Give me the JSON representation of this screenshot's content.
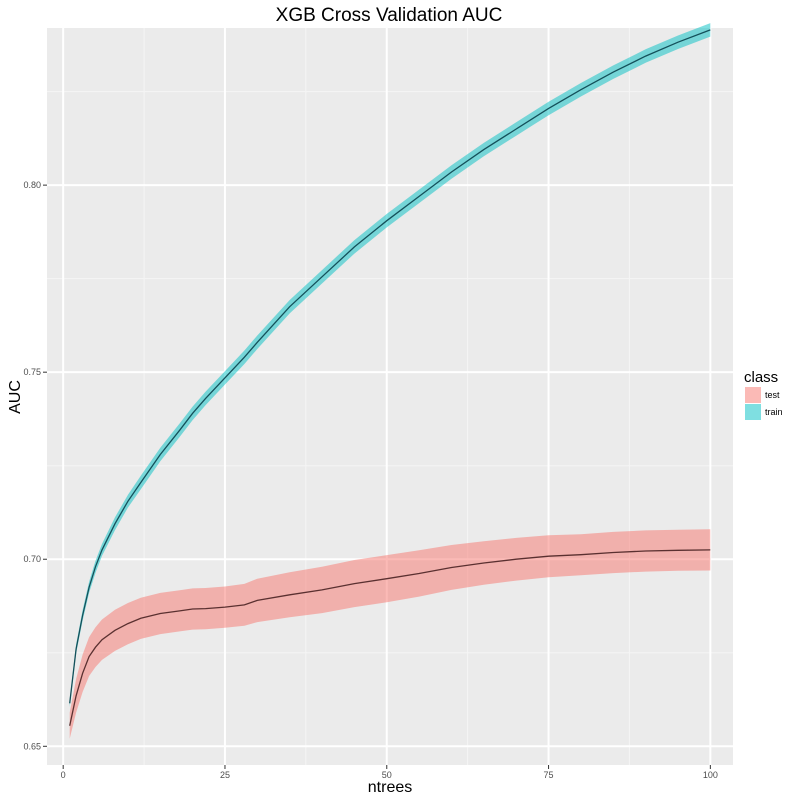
{
  "chart_data": {
    "type": "line",
    "title": "XGB Cross Validation AUC",
    "xlabel": "ntrees",
    "ylabel": "AUC",
    "xlim": [
      -2.5,
      103.5
    ],
    "ylim": [
      0.645,
      0.842
    ],
    "x_ticks": [
      0,
      25,
      50,
      75,
      100
    ],
    "x_tick_labels": [
      "0",
      "25",
      "50",
      "75",
      "100"
    ],
    "y_ticks": [
      0.65,
      0.7,
      0.75,
      0.8
    ],
    "y_tick_labels": [
      "0.65",
      "0.70",
      "0.75",
      "0.80"
    ],
    "grid": true,
    "legend": {
      "title": "class",
      "position": "right"
    },
    "series": [
      {
        "name": "test",
        "fill_color": "#F8766D",
        "line_color": "#5a3030",
        "x": [
          1,
          2,
          3,
          4,
          5,
          6,
          8,
          10,
          12,
          15,
          18,
          20,
          22,
          25,
          28,
          30,
          35,
          40,
          45,
          50,
          55,
          60,
          65,
          70,
          75,
          80,
          85,
          90,
          95,
          100
        ],
        "mean": [
          0.6555,
          0.6635,
          0.6695,
          0.674,
          0.6765,
          0.6785,
          0.681,
          0.6828,
          0.6842,
          0.6855,
          0.6862,
          0.6867,
          0.6868,
          0.6872,
          0.6878,
          0.689,
          0.6905,
          0.6918,
          0.6935,
          0.6948,
          0.6962,
          0.6978,
          0.699,
          0.7,
          0.7008,
          0.7012,
          0.7018,
          0.7022,
          0.7024,
          0.7025
        ],
        "sd": [
          0.0035,
          0.0045,
          0.005,
          0.0052,
          0.0053,
          0.0054,
          0.0055,
          0.0055,
          0.0055,
          0.0055,
          0.0055,
          0.0055,
          0.0055,
          0.0055,
          0.0056,
          0.0058,
          0.006,
          0.0062,
          0.0063,
          0.0063,
          0.0062,
          0.006,
          0.0058,
          0.0057,
          0.0056,
          0.0055,
          0.0055,
          0.0055,
          0.0055,
          0.0055
        ]
      },
      {
        "name": "train",
        "fill_color": "#00BFC4",
        "line_color": "#14505a",
        "x": [
          1,
          2,
          3,
          4,
          5,
          6,
          8,
          10,
          12,
          15,
          18,
          20,
          22,
          25,
          28,
          30,
          35,
          40,
          45,
          50,
          55,
          60,
          65,
          70,
          75,
          80,
          85,
          90,
          95,
          100
        ],
        "mean": [
          0.6615,
          0.676,
          0.685,
          0.6925,
          0.698,
          0.7025,
          0.7095,
          0.7155,
          0.7205,
          0.728,
          0.7345,
          0.739,
          0.743,
          0.7485,
          0.754,
          0.758,
          0.7675,
          0.7755,
          0.7835,
          0.7905,
          0.797,
          0.8035,
          0.8095,
          0.815,
          0.8205,
          0.8255,
          0.8302,
          0.8345,
          0.8382,
          0.8415
        ],
        "sd": [
          0.001,
          0.0012,
          0.0014,
          0.0015,
          0.0016,
          0.0016,
          0.0017,
          0.0017,
          0.0018,
          0.0018,
          0.0018,
          0.0018,
          0.0018,
          0.0018,
          0.0018,
          0.0018,
          0.0018,
          0.0018,
          0.0018,
          0.0018,
          0.0018,
          0.0018,
          0.0018,
          0.0018,
          0.0018,
          0.0018,
          0.0018,
          0.0018,
          0.0018,
          0.0018
        ]
      }
    ]
  }
}
